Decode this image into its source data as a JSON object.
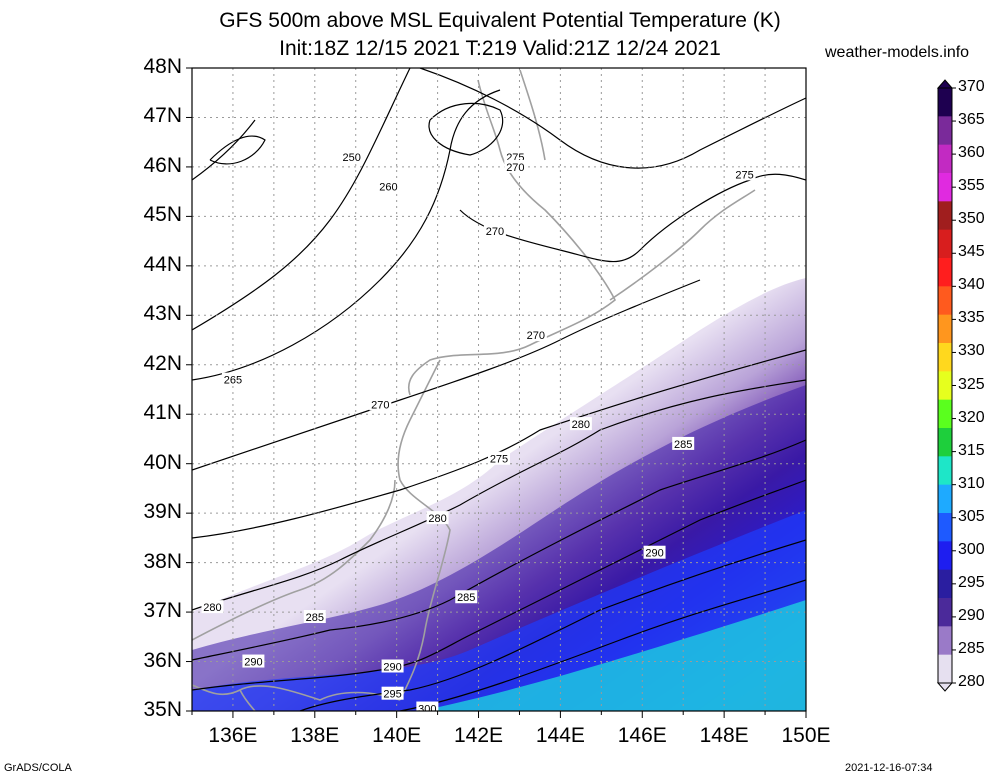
{
  "title_line1": "GFS 500m above MSL Equivalent Potential Temperature (K)",
  "title_line2": "Init:18Z 12/15 2021 T:219 Valid:21Z 12/24 2021",
  "site": "weather-models.info",
  "footer_left": "GrADS/COLA",
  "footer_right": "2021-12-16-07:34",
  "lat_labels": [
    "48N",
    "47N",
    "46N",
    "45N",
    "44N",
    "43N",
    "42N",
    "41N",
    "40N",
    "39N",
    "38N",
    "37N",
    "36N",
    "35N"
  ],
  "lon_labels": [
    "136E",
    "138E",
    "140E",
    "142E",
    "144E",
    "146E",
    "148E",
    "150E"
  ],
  "colorbar": {
    "levels": [
      "370",
      "365",
      "360",
      "355",
      "350",
      "345",
      "340",
      "335",
      "330",
      "325",
      "320",
      "315",
      "310",
      "305",
      "300",
      "295",
      "290",
      "285",
      "280"
    ],
    "colors": [
      "#1e0050",
      "#7a2a9a",
      "#c22ac2",
      "#e02ae0",
      "#a01e1e",
      "#d81e1e",
      "#ff1e1e",
      "#ff5a1e",
      "#ff961e",
      "#ffd81e",
      "#e6ff1e",
      "#5aff1e",
      "#1ecf3c",
      "#1ee6c8",
      "#1eaaff",
      "#1e5aff",
      "#1e1ef0",
      "#2a1ea0",
      "#4b2a9a",
      "#9a7ac8",
      "#e6e0f0"
    ]
  },
  "contour_labels": [
    {
      "text": "250",
      "lon": 138.9,
      "lat": 46.2
    },
    {
      "text": "260",
      "lon": 139.8,
      "lat": 45.6
    },
    {
      "text": "275",
      "lon": 142.9,
      "lat": 46.2
    },
    {
      "text": "270",
      "lon": 142.9,
      "lat": 46.0
    },
    {
      "text": "275",
      "lon": 148.5,
      "lat": 45.85
    },
    {
      "text": "270",
      "lon": 142.4,
      "lat": 44.7
    },
    {
      "text": "270",
      "lon": 143.4,
      "lat": 42.6
    },
    {
      "text": "265",
      "lon": 136.0,
      "lat": 41.7
    },
    {
      "text": "270",
      "lon": 139.6,
      "lat": 41.2
    },
    {
      "text": "275",
      "lon": 142.5,
      "lat": 40.1
    },
    {
      "text": "280",
      "lon": 144.5,
      "lat": 40.8
    },
    {
      "text": "285",
      "lon": 147.0,
      "lat": 40.4
    },
    {
      "text": "280",
      "lon": 141.0,
      "lat": 38.9
    },
    {
      "text": "290",
      "lon": 146.3,
      "lat": 38.2
    },
    {
      "text": "280",
      "lon": 135.5,
      "lat": 37.1
    },
    {
      "text": "285",
      "lon": 138.0,
      "lat": 36.9
    },
    {
      "text": "285",
      "lon": 141.7,
      "lat": 37.3
    },
    {
      "text": "290",
      "lon": 136.5,
      "lat": 36.0
    },
    {
      "text": "290",
      "lon": 139.9,
      "lat": 35.9
    },
    {
      "text": "295",
      "lon": 139.9,
      "lat": 35.35
    },
    {
      "text": "300",
      "lon": 140.75,
      "lat": 35.05
    }
  ]
}
